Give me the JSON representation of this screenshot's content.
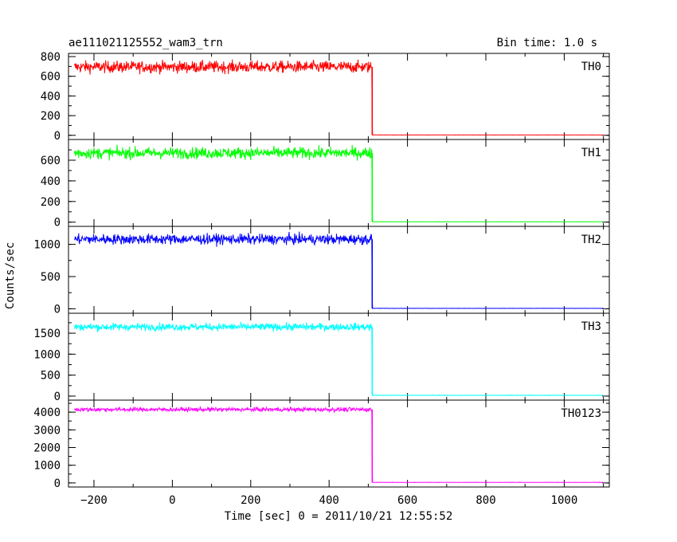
{
  "title": "ae111021125552_wam3_trn",
  "bin_time_label": "Bin time: 1.0 s",
  "xlabel": "Time [sec] 0 = 2011/10/21 12:55:52",
  "ylabel": "Counts/sec",
  "chart_data": {
    "type": "line",
    "x_range": [
      -265,
      1115
    ],
    "x_ticks": [
      -200,
      0,
      200,
      400,
      600,
      800,
      1000
    ],
    "x_tick_labels": [
      "−200",
      "0",
      "200",
      "400",
      "600",
      "800",
      "1000"
    ],
    "shared_x": true,
    "series": [
      {
        "name": "TH0",
        "color": "#ff0000",
        "ylim": [
          -10,
          800
        ],
        "yticks": [
          0,
          200,
          400,
          600,
          800
        ],
        "level_before": 695,
        "noise": 30,
        "drop_time": 510,
        "level_after": 3,
        "segment": [
          -250,
          1100
        ]
      },
      {
        "name": "TH1",
        "color": "#00ff00",
        "ylim": [
          -10,
          770
        ],
        "yticks": [
          0,
          200,
          400,
          600
        ],
        "level_before": 670,
        "noise": 28,
        "drop_time": 510,
        "level_after": 3,
        "segment": [
          -250,
          1100
        ]
      },
      {
        "name": "TH2",
        "color": "#0000ff",
        "ylim": [
          -20,
          1230
        ],
        "yticks": [
          0,
          500,
          1000
        ],
        "level_before": 1080,
        "noise": 40,
        "drop_time": 510,
        "level_after": 5,
        "segment": [
          -250,
          1100
        ]
      },
      {
        "name": "TH3",
        "color": "#00ffff",
        "ylim": [
          -20,
          1900
        ],
        "yticks": [
          0,
          500,
          1000,
          1500
        ],
        "level_before": 1650,
        "noise": 45,
        "drop_time": 510,
        "level_after": 15,
        "segment": [
          -250,
          1100
        ]
      },
      {
        "name": "TH0123",
        "color": "#ff00ff",
        "ylim": [
          -50,
          4500
        ],
        "yticks": [
          0,
          1000,
          2000,
          3000,
          4000
        ],
        "level_before": 4150,
        "noise": 60,
        "drop_time": 510,
        "level_after": 25,
        "segment": [
          -250,
          1100
        ]
      }
    ]
  }
}
